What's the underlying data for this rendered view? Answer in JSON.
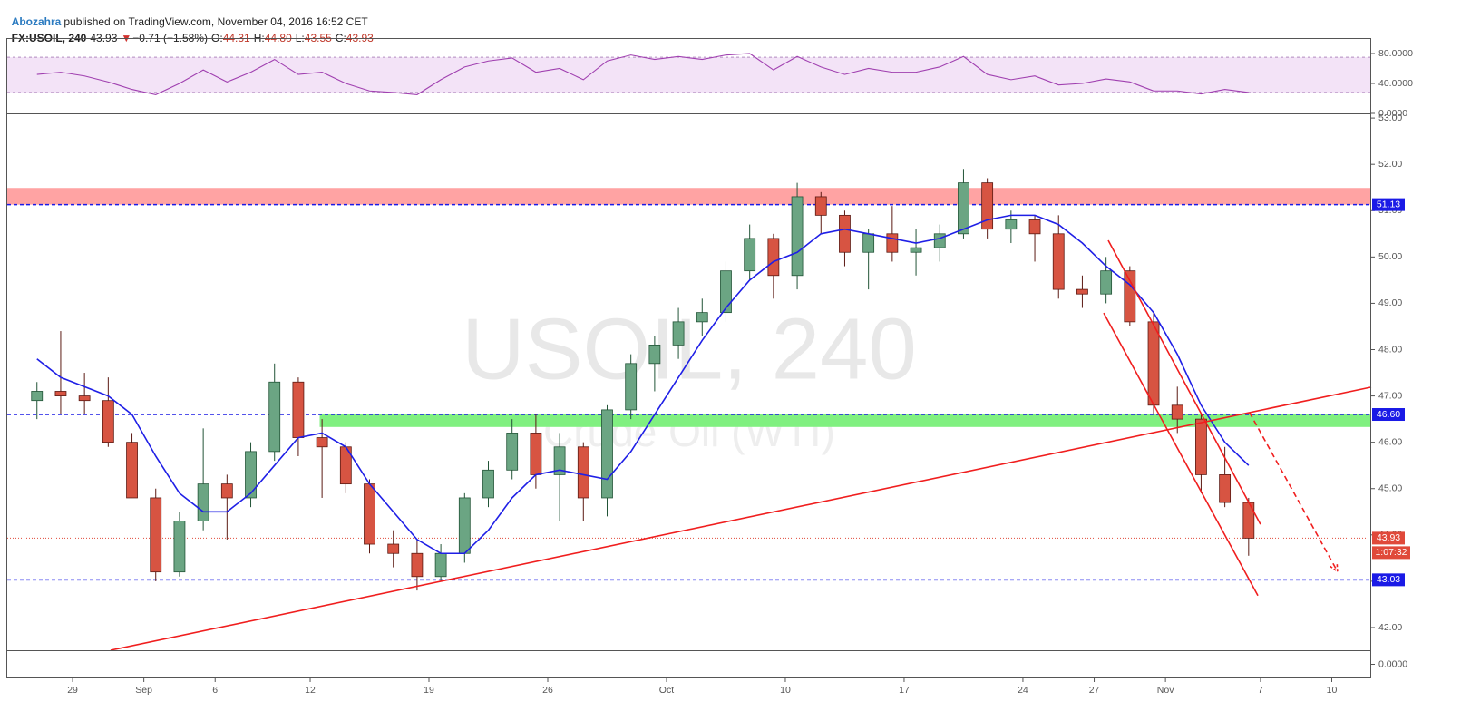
{
  "header": {
    "author": "Abozahra",
    "published": "published on TradingView.com, November 04, 2016 16:52 CET",
    "symbol": "FX:USOIL, 240",
    "last": "43.93",
    "change_arrow": "▼",
    "change": "−0.71 (−1.58%)",
    "ohlc_labels": [
      "O:",
      "H:",
      "L:",
      "C:"
    ],
    "ohlc": [
      "44.31",
      "44.80",
      "43.55",
      "43.93"
    ]
  },
  "chart_data": [
    {
      "type": "candlestick",
      "title": "USOIL, 240",
      "subtitle": "Crude Oil (WTI)",
      "xlim": [
        -0.75,
        56.66
      ],
      "xticks": [
        {
          "value": 2,
          "label": "29"
        },
        {
          "value": 5,
          "label": "Sep"
        },
        {
          "value": 8,
          "label": "6"
        },
        {
          "value": 12,
          "label": "12"
        },
        {
          "value": 17,
          "label": "19"
        },
        {
          "value": 22,
          "label": "26"
        },
        {
          "value": 27,
          "label": "Oct"
        },
        {
          "value": 32,
          "label": "10"
        },
        {
          "value": 37,
          "label": "17"
        },
        {
          "value": 42,
          "label": "24"
        },
        {
          "value": 45,
          "label": "27"
        },
        {
          "value": 48,
          "label": "Nov"
        },
        {
          "value": 52,
          "label": "7"
        },
        {
          "value": 55,
          "label": "10"
        }
      ],
      "ylim": [
        41.51,
        53.1
      ],
      "yticks": [
        {
          "value": 42,
          "label": "42.00"
        },
        {
          "value": 43,
          "label": "43.00"
        },
        {
          "value": 44,
          "label": "44.00"
        },
        {
          "value": 45,
          "label": "45.00"
        },
        {
          "value": 46,
          "label": "46.00"
        },
        {
          "value": 47,
          "label": "47.00"
        },
        {
          "value": 48,
          "label": "48.00"
        },
        {
          "value": 49,
          "label": "49.00"
        },
        {
          "value": 50,
          "label": "50.00"
        },
        {
          "value": 51,
          "label": "51.00"
        },
        {
          "value": 52,
          "label": "52.00"
        },
        {
          "value": 53,
          "label": "53.00"
        }
      ],
      "open": [
        46.9,
        47.1,
        47.0,
        46.9,
        46.0,
        44.8,
        43.2,
        44.3,
        45.1,
        44.8,
        45.8,
        47.3,
        46.1,
        45.9,
        45.1,
        43.8,
        43.6,
        43.1,
        43.6,
        44.8,
        45.4,
        46.2,
        45.3,
        45.9,
        44.8,
        46.7,
        47.7,
        48.1,
        48.6,
        48.8,
        49.7,
        50.4,
        49.6,
        51.3,
        50.9,
        50.1,
        50.5,
        50.1,
        50.2,
        50.5,
        51.6,
        50.6,
        50.8,
        50.5,
        49.3,
        49.2,
        49.7,
        48.6,
        46.8,
        46.5,
        45.3,
        44.7
      ],
      "high": [
        47.3,
        48.4,
        47.5,
        47.4,
        46.2,
        45.0,
        44.5,
        46.3,
        45.3,
        46.0,
        47.7,
        47.4,
        46.5,
        46.0,
        45.2,
        44.1,
        43.9,
        43.8,
        44.9,
        45.6,
        46.5,
        46.6,
        46.2,
        46.0,
        46.8,
        47.9,
        48.3,
        48.9,
        49.1,
        49.9,
        50.7,
        50.5,
        51.6,
        51.4,
        51.0,
        50.6,
        51.1,
        50.6,
        50.7,
        51.9,
        51.7,
        51.0,
        50.9,
        50.9,
        49.6,
        50.0,
        49.8,
        48.8,
        47.2,
        46.6,
        45.9,
        44.8
      ],
      "low": [
        46.5,
        46.6,
        46.6,
        45.9,
        44.8,
        43.0,
        43.1,
        44.1,
        43.9,
        44.6,
        45.6,
        45.7,
        44.8,
        44.9,
        43.6,
        43.3,
        42.8,
        43.0,
        43.4,
        44.6,
        45.2,
        45.0,
        44.3,
        44.3,
        44.4,
        46.5,
        47.1,
        47.8,
        48.3,
        48.6,
        49.5,
        49.1,
        49.3,
        50.5,
        49.8,
        49.3,
        49.9,
        49.6,
        49.9,
        50.4,
        50.4,
        50.3,
        49.9,
        49.1,
        48.9,
        49.0,
        48.5,
        46.6,
        46.2,
        44.9,
        44.6,
        43.55
      ],
      "close": [
        47.1,
        47.0,
        46.9,
        46.0,
        44.8,
        43.2,
        44.3,
        45.1,
        44.8,
        45.8,
        47.3,
        46.1,
        45.9,
        45.1,
        43.8,
        43.6,
        43.1,
        43.6,
        44.8,
        45.4,
        46.2,
        45.3,
        45.9,
        44.8,
        46.7,
        47.7,
        48.1,
        48.6,
        48.8,
        49.7,
        50.4,
        49.6,
        51.3,
        50.9,
        50.1,
        50.5,
        50.1,
        50.2,
        50.5,
        51.6,
        50.6,
        50.8,
        50.5,
        49.3,
        49.2,
        49.7,
        48.6,
        46.8,
        46.5,
        45.3,
        44.7,
        43.93
      ],
      "up_color": "#6ba583",
      "down_color": "#d75442",
      "ma": {
        "color": "#1f1fe6",
        "values": [
          47.8,
          47.4,
          47.2,
          47.0,
          46.6,
          45.7,
          44.9,
          44.5,
          44.5,
          44.9,
          45.5,
          46.1,
          46.2,
          45.9,
          45.1,
          44.5,
          43.9,
          43.6,
          43.6,
          44.1,
          44.8,
          45.3,
          45.4,
          45.3,
          45.2,
          45.8,
          46.6,
          47.4,
          48.2,
          48.9,
          49.5,
          49.9,
          50.1,
          50.5,
          50.6,
          50.5,
          50.4,
          50.3,
          50.4,
          50.6,
          50.8,
          50.9,
          50.9,
          50.7,
          50.3,
          49.8,
          49.4,
          48.8,
          47.9,
          46.8,
          46.0,
          45.5
        ]
      },
      "zones": [
        {
          "from": 51.13,
          "to": 51.49,
          "color": "#ffa3a3"
        },
        {
          "from": 46.33,
          "to": 46.6,
          "x_start": 12.4,
          "color": "#80f080"
        }
      ],
      "levels": [
        {
          "value": 51.13,
          "color": "#1a1ae6",
          "style": "dashed"
        },
        {
          "value": 46.6,
          "label": "46.60",
          "color": "#1a1ae6",
          "style": "dashed"
        },
        {
          "value": 43.03,
          "color": "#1a1ae6",
          "style": "dashed"
        },
        {
          "value": 43.93,
          "color": "#e0493a",
          "style": "dotted",
          "countdown": "1:07:32"
        }
      ],
      "trendlines": [
        {
          "x": [
            3.6,
            56.66
          ],
          "y": [
            41.51,
            47.19
          ],
          "color": "#f01e1e"
        },
        {
          "x": [
            45.59,
            52.0
          ],
          "y": [
            50.36,
            44.23
          ],
          "color": "#f01e1e"
        },
        {
          "x": [
            45.4,
            51.89
          ],
          "y": [
            48.79,
            42.69
          ],
          "color": "#f01e1e"
        },
        {
          "x": [
            51.54,
            55.24
          ],
          "y": [
            46.64,
            43.21
          ],
          "color": "#f01e1e",
          "dashed": true,
          "arrow": true
        }
      ]
    },
    {
      "type": "line",
      "ylim": [
        0,
        100.6
      ],
      "yticks": [
        {
          "value": 0,
          "label": "0.0000"
        },
        {
          "value": 40,
          "label": "40.0000"
        },
        {
          "value": 80,
          "label": "80.0000"
        }
      ],
      "band": [
        28,
        75
      ],
      "band_color": "#f3e3f7",
      "series": [
        {
          "color": "#a040b0",
          "values": [
            52,
            55,
            50,
            42,
            32,
            25,
            40,
            58,
            42,
            55,
            72,
            52,
            55,
            40,
            30,
            28,
            25,
            45,
            62,
            70,
            74,
            55,
            60,
            45,
            70,
            78,
            72,
            76,
            72,
            78,
            80,
            58,
            76,
            62,
            52,
            60,
            55,
            55,
            62,
            76,
            52,
            45,
            50,
            38,
            40,
            46,
            42,
            30,
            30,
            26,
            32,
            28
          ]
        }
      ]
    },
    {
      "type": "line",
      "ylim": [
        -1,
        1
      ],
      "yticks": [
        {
          "value": 0,
          "label": "0.0000"
        }
      ],
      "series": []
    }
  ]
}
